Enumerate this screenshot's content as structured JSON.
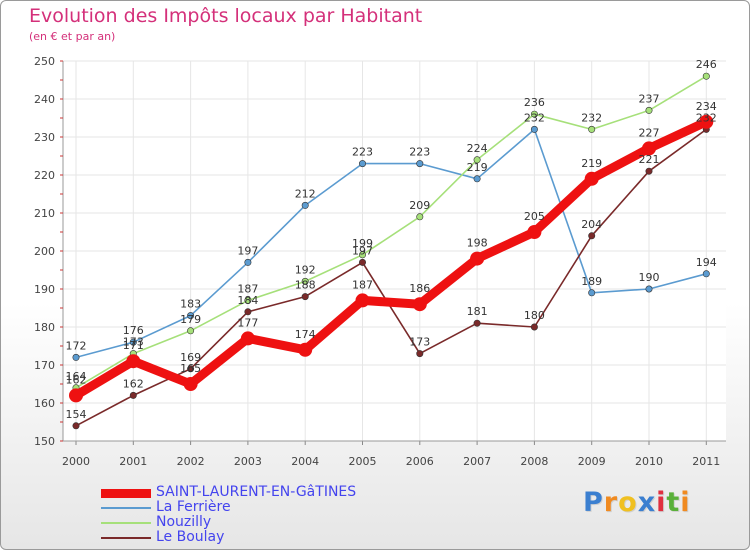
{
  "title": "Evolution des Impôts locaux par Habitant",
  "subtitle": "(en € et par an)",
  "brand": {
    "chars": [
      "P",
      "r",
      "o",
      "x",
      "i",
      "t",
      "i"
    ],
    "colors": [
      "#3b7fd0",
      "#f08a20",
      "#f0c020",
      "#3b7fd0",
      "#e03040",
      "#5ab03a",
      "#f08a20"
    ]
  },
  "chart_data": {
    "type": "line",
    "title": "Evolution des Impôts locaux par Habitant",
    "subtitle": "(en € et par an)",
    "categories": [
      "2000",
      "2001",
      "2002",
      "2003",
      "2004",
      "2005",
      "2006",
      "2007",
      "2008",
      "2009",
      "2010",
      "2011"
    ],
    "ylim": [
      150,
      250
    ],
    "yticks": [
      150,
      160,
      170,
      180,
      190,
      200,
      210,
      220,
      230,
      240,
      250
    ],
    "series": [
      {
        "name": "La Ferrière",
        "color": "#5b9bd0",
        "values": [
          172,
          176,
          183,
          197,
          212,
          223,
          223,
          219,
          232,
          189,
          190,
          194
        ]
      },
      {
        "name": "Nouzilly",
        "color": "#a6e07a",
        "values": [
          164,
          173,
          179,
          187,
          192,
          199,
          209,
          224,
          236,
          232,
          237,
          246
        ]
      },
      {
        "name": "Le Boulay",
        "color": "#7a2a2a",
        "values": [
          154,
          162,
          169,
          184,
          188,
          197,
          173,
          181,
          180,
          204,
          221,
          232
        ]
      },
      {
        "name": "SAINT-LAURENT-EN-GâTINES",
        "color": "#ee1111",
        "values": [
          162,
          171,
          165,
          177,
          174,
          187,
          186,
          198,
          205,
          219,
          227,
          234
        ]
      }
    ]
  },
  "legend": [
    {
      "label": "SAINT-LAURENT-EN-GâTINES",
      "color": "#ee1111",
      "width": 9
    },
    {
      "label": "La Ferrière",
      "color": "#5b9bd0",
      "width": 2
    },
    {
      "label": "Nouzilly",
      "color": "#a6e07a",
      "width": 2
    },
    {
      "label": "Le Boulay",
      "color": "#7a2a2a",
      "width": 2
    }
  ]
}
